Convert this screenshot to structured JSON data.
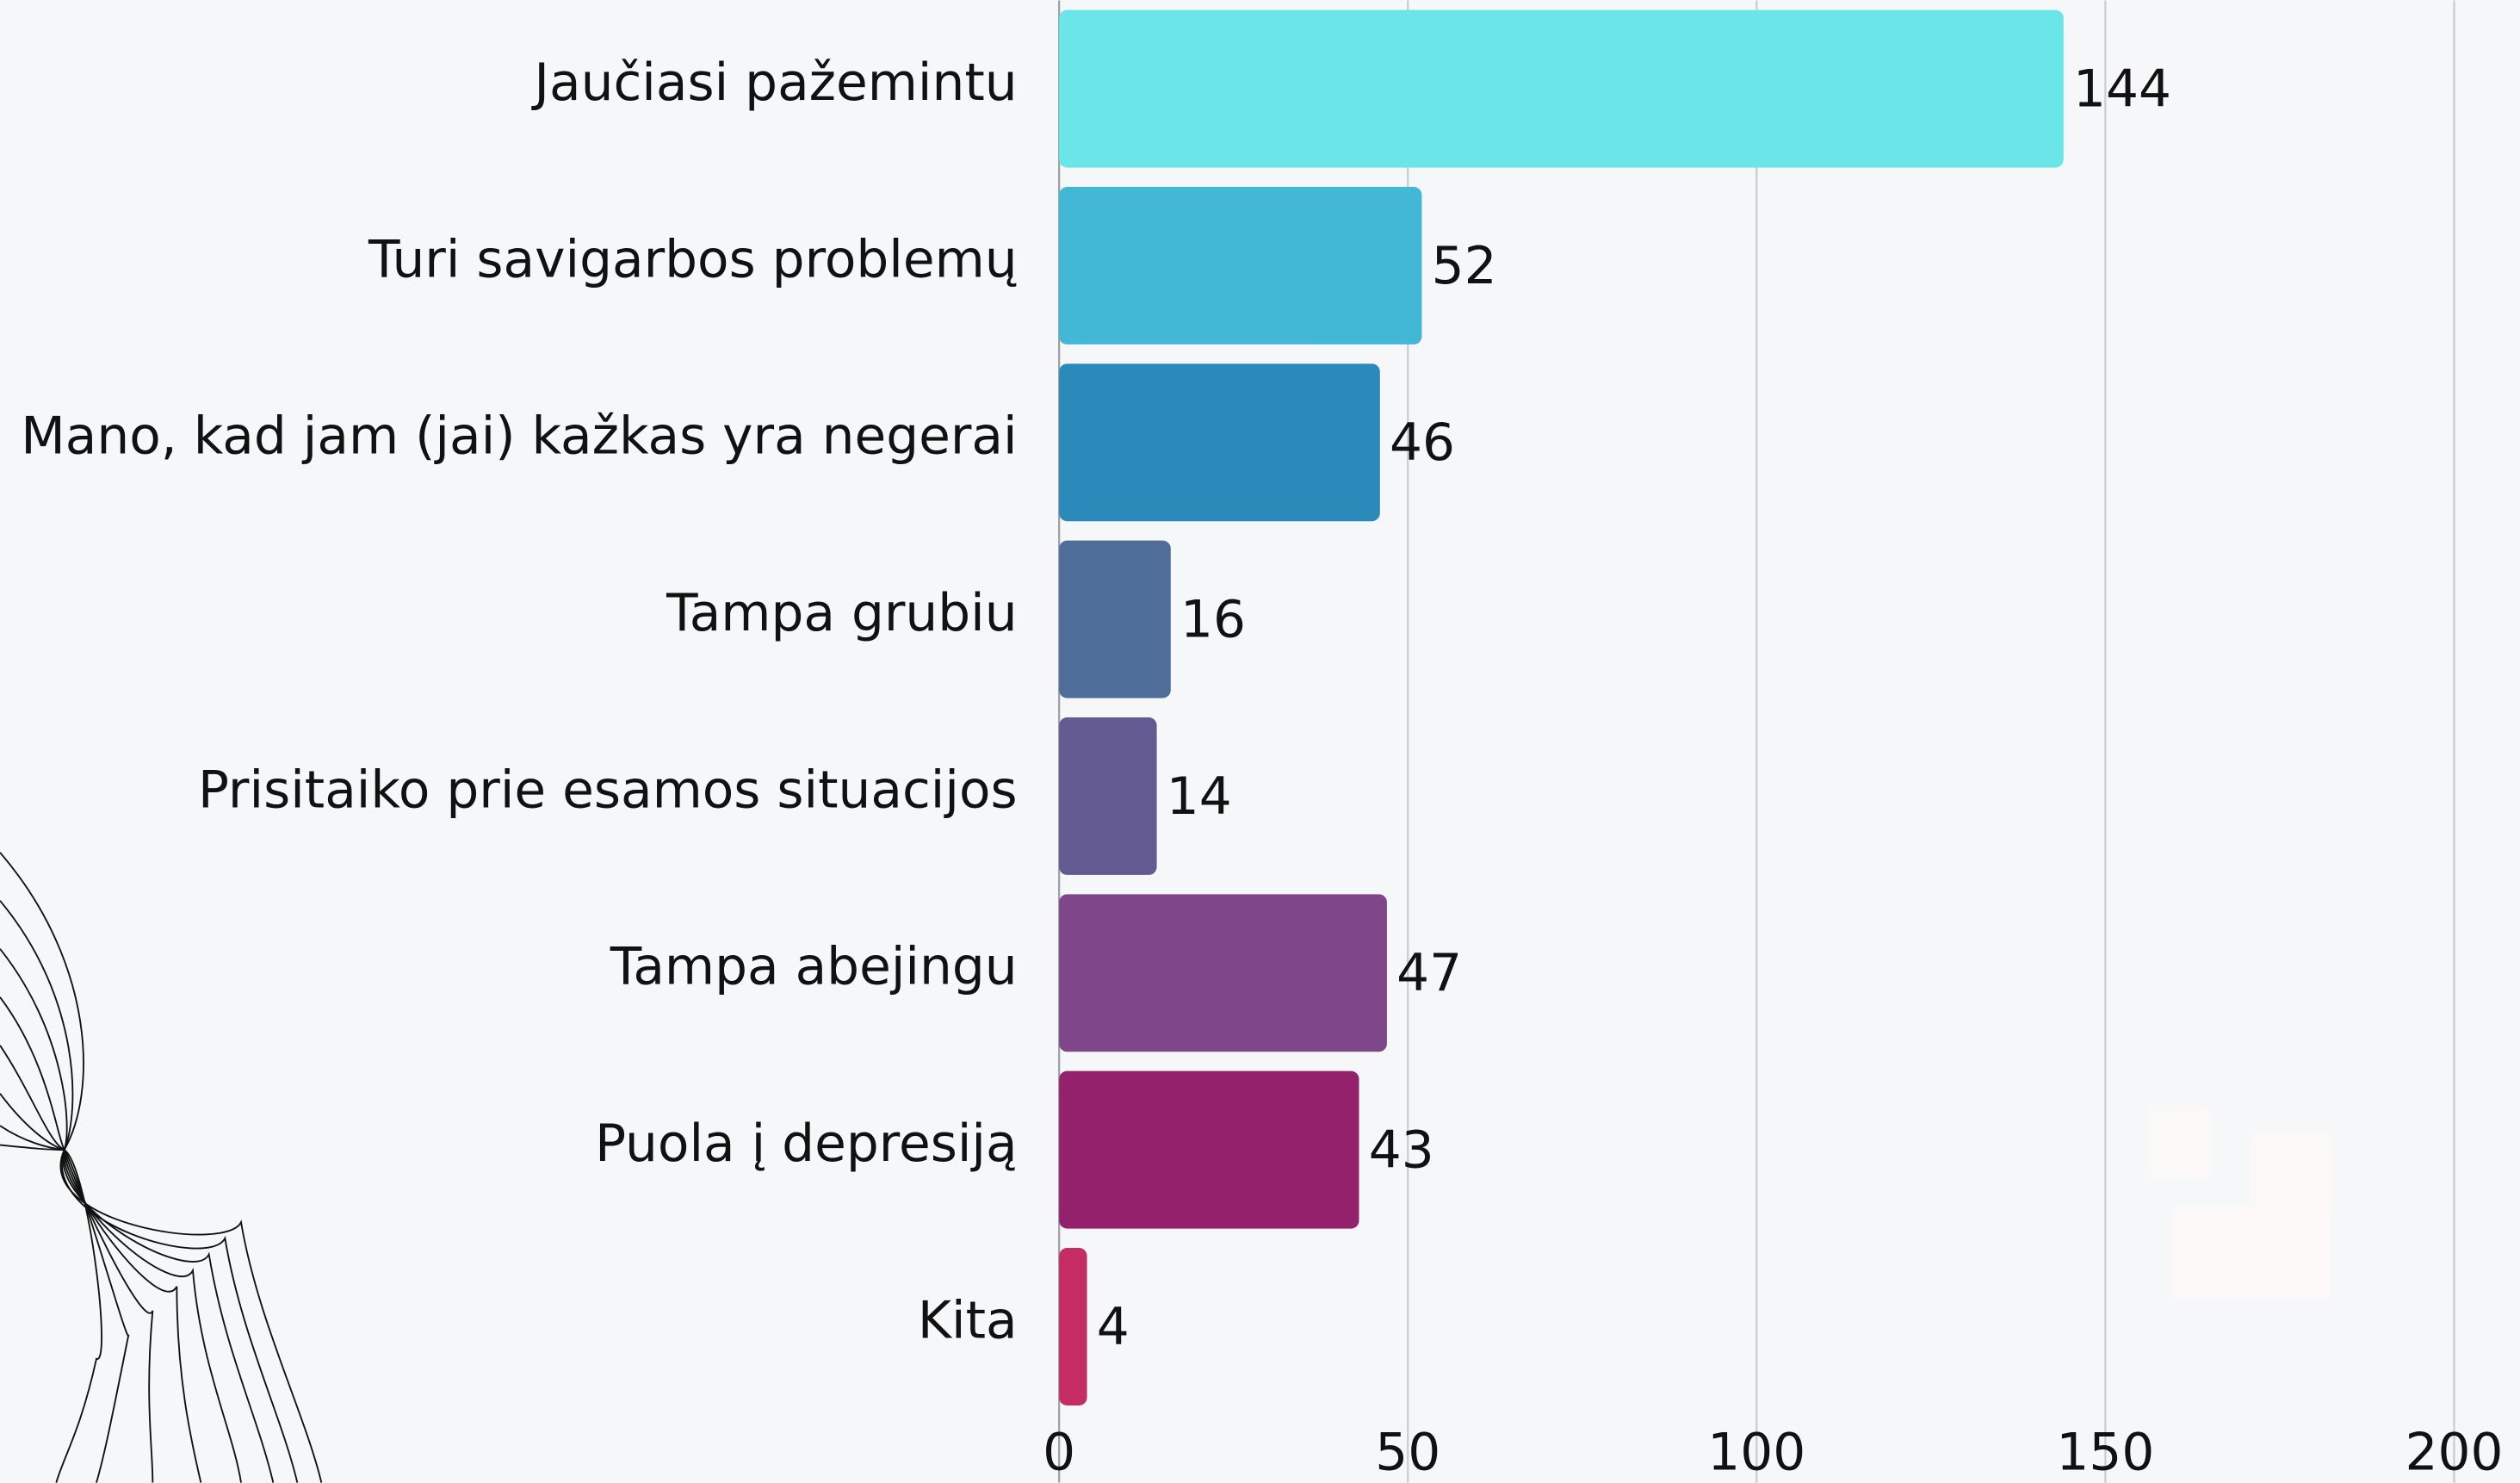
{
  "chart_data": {
    "type": "bar",
    "orientation": "horizontal",
    "categories": [
      "Jaučiasi pažemintu",
      "Turi savigarbos problemų",
      "Mano, kad jam (jai) kažkas yra negerai",
      "Tampa grubiu",
      "Prisitaiko prie esamos situacijos",
      "Tampa abejingu",
      "Puola į depresiją",
      "Kita"
    ],
    "values": [
      144,
      52,
      46,
      16,
      14,
      47,
      43,
      4
    ],
    "colors": [
      "#6ae6e9",
      "#42b7d6",
      "#2c8aba",
      "#4e6d98",
      "#625a90",
      "#7f4689",
      "#93216b",
      "#c52c62"
    ],
    "xlim": [
      0,
      200
    ],
    "xticks": [
      0,
      50,
      100,
      150,
      200
    ],
    "grid": true
  }
}
